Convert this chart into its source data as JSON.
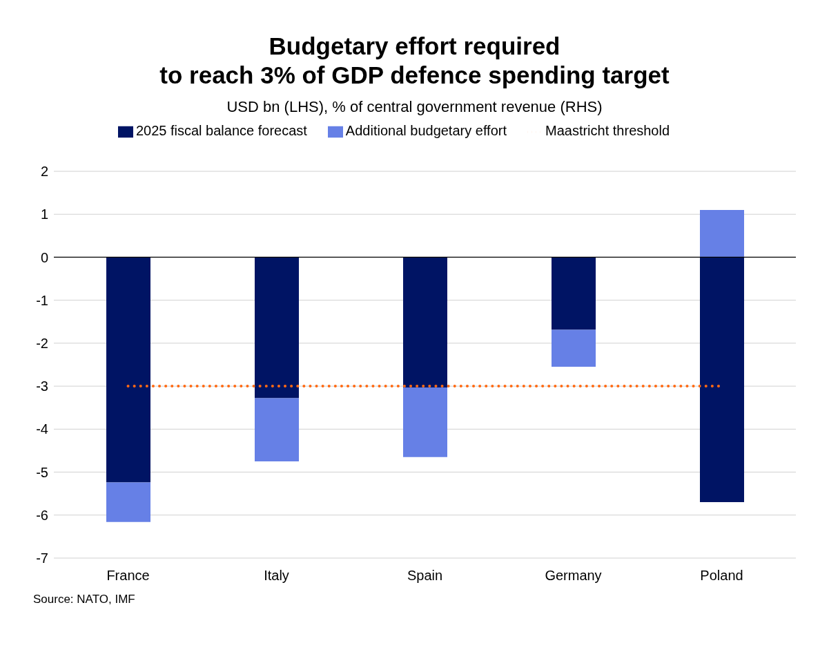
{
  "chart_data": {
    "type": "bar",
    "title": "Budgetary effort required\nto reach 3% of GDP defence spending target",
    "subtitle": "USD bn (LHS), % of central government revenue (RHS)",
    "categories": [
      "France",
      "Italy",
      "Spain",
      "Germany",
      "Poland"
    ],
    "stacked": true,
    "series": [
      {
        "name": "2025 fiscal balance forecast",
        "color": "#001464",
        "values": [
          -5.24,
          -3.28,
          -3.03,
          -1.69,
          -5.7
        ]
      },
      {
        "name": "Additional budgetary effort",
        "color": "#6680e6",
        "values": [
          -0.92,
          -1.47,
          -1.62,
          -0.86,
          1.1
        ]
      },
      {
        "name": "Maastricht threshold",
        "type": "line",
        "color": "#ff6a13",
        "line_style": "dotted",
        "marker": "none",
        "values": [
          -3,
          -3,
          -3,
          -3,
          -3
        ]
      }
    ],
    "ylim": [
      -7,
      2
    ],
    "yticks": [
      -7,
      -6,
      -5,
      -4,
      -3,
      -2,
      -1,
      0,
      1,
      2
    ],
    "ref_lines": [
      {
        "axis": "y",
        "value": 0,
        "color": "#000000"
      }
    ],
    "grid": "y",
    "legend": "top",
    "annotations": [
      "Source: NATO, IMF"
    ]
  }
}
